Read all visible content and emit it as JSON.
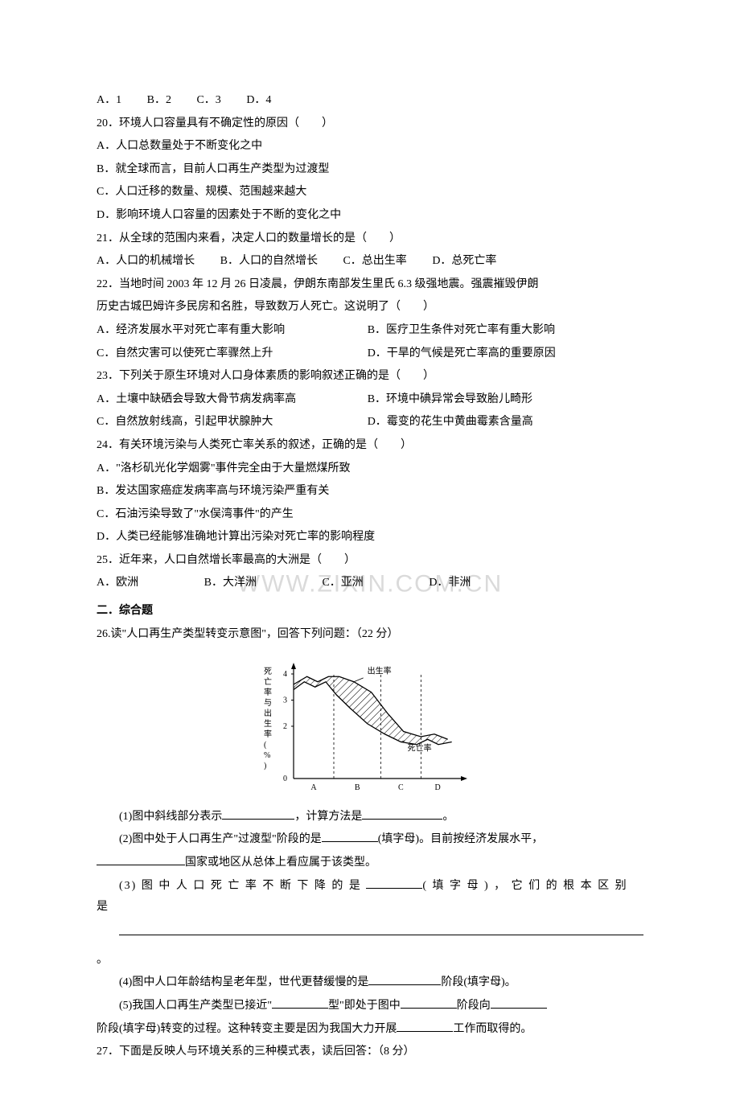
{
  "q19": {
    "opts": [
      "A．1",
      "B．2",
      "C．3",
      "D．4"
    ]
  },
  "q20": {
    "stem": "20．环境人口容量具有不确定性的原因（　　）",
    "a": "A．人口总数量处于不断变化之中",
    "b": "B．就全球而言，目前人口再生产类型为过渡型",
    "c": "C．人口迁移的数量、规模、范围越来越大",
    "d": "D．影响环境人口容量的因素处于不断的变化之中"
  },
  "q21": {
    "stem": "21．从全球的范围内来看，决定人口的数量增长的是（　　）",
    "opts": [
      "A．人口的机械增长",
      "B．人口的自然增长",
      "C．总出生率",
      "D．总死亡率"
    ]
  },
  "q22": {
    "stem1": "22．当地时间 2003 年 12 月 26 日凌晨，伊朗东南部发生里氏 6.3 级强地震。强震摧毁伊朗",
    "stem2": "历史古城巴姆许多民房和名胜，导致数万人死亡。这说明了（　　）",
    "row1a": "A．经济发展水平对死亡率有重大影响",
    "row1b": "B．医疗卫生条件对死亡率有重大影响",
    "row2a": "C．自然灾害可以使死亡率骤然上升",
    "row2b": "D．干旱的气候是死亡率高的重要原因"
  },
  "q23": {
    "stem": "23．下列关于原生环境对人口身体素质的影响叙述正确的是（　　）",
    "row1a": "A．土壤中缺硒会导致大骨节病发病率高",
    "row1b": "B．环境中碘异常会导致胎儿畸形",
    "row2a": "C．自然放射线高，引起甲状腺肿大",
    "row2b": "D．霉变的花生中黄曲霉素含量高"
  },
  "q24": {
    "stem": "24．有关环境污染与人类死亡率关系的叙述，正确的是（　　）",
    "a": "A．\"洛杉矶光化学烟雾\"事件完全由于大量燃煤所致",
    "b": "B．发达国家癌症发病率高与环境污染严重有关",
    "c": "C．石油污染导致了\"水俣湾事件\"的产生",
    "d": "D．人类已经能够准确地计算出污染对死亡率的影响程度"
  },
  "q25": {
    "stem": "25．近年来，人口自然增长率最高的大洲是（　　）",
    "opts": [
      "A．欧洲",
      "B．大洋洲",
      "C．亚洲",
      "D．非洲"
    ],
    "watermark": "WWW.ZIXIN.COM.CN"
  },
  "section": "二．综合题",
  "q26": {
    "stem": "26.读\"人口再生产类型转变示意图\"，回答下列问题：（22 分）",
    "chart": {
      "type": "line",
      "ylabel": "死亡率与出生率(%)",
      "ylim": [
        0,
        4
      ],
      "ytick_step": 1,
      "yticks": [
        0,
        2,
        3,
        4
      ],
      "xlabels": [
        "A",
        "B",
        "C",
        "D"
      ],
      "curves": {
        "birth": {
          "label": "出生率",
          "points": [
            [
              0,
              3.6
            ],
            [
              10,
              3.9
            ],
            [
              18,
              3.7
            ],
            [
              26,
              3.9
            ],
            [
              34,
              3.9
            ],
            [
              45,
              3.7
            ],
            [
              58,
              3.3
            ],
            [
              70,
              2.5
            ],
            [
              82,
              1.8
            ],
            [
              95,
              1.6
            ],
            [
              105,
              1.7
            ],
            [
              115,
              1.5
            ]
          ]
        },
        "death": {
          "label": "死亡率",
          "points": [
            [
              0,
              3.4
            ],
            [
              8,
              3.7
            ],
            [
              16,
              3.5
            ],
            [
              24,
              3.7
            ],
            [
              32,
              3.2
            ],
            [
              42,
              2.7
            ],
            [
              55,
              2.1
            ],
            [
              68,
              1.7
            ],
            [
              80,
              1.4
            ],
            [
              92,
              1.3
            ],
            [
              100,
              1.5
            ],
            [
              108,
              1.3
            ],
            [
              118,
              1.4
            ]
          ]
        }
      },
      "hatch_between": true,
      "axis_color": "#000000",
      "line_color": "#000000",
      "bg": "#ffffff",
      "font_size": 10
    },
    "p1a": "(1)图中斜线部分表示",
    "p1b": "，计算方法是",
    "p1c": "。",
    "p2a": "(2)图中处于人口再生产\"过渡型\"阶段的是",
    "p2b": "(填字母)。目前按经济发展水平，",
    "p2c": "国家或地区从总体上看应属于该类型。",
    "p3a": "(3) 图 中 人 口 死 亡 率 不 断 下 降 的 是",
    "p3b": "( 填 字 母 ) ， 它 们 的 根 本 区 别 是",
    "p3c": "。",
    "p4a": "(4)图中人口年龄结构呈老年型，世代更替缓慢的是",
    "p4b": "阶段(填字母)。",
    "p5a": "(5)我国人口再生产类型已接近\"",
    "p5b": "型\"即处于图中",
    "p5c": "阶段向",
    "p5d": "阶段(填字母)转变的过程。这种转变主要是因为我国大力开展",
    "p5e": "工作而取得的。"
  },
  "q27": {
    "stem": "27．下面是反映人与环境关系的三种模式表，读后回答：（8 分）"
  }
}
